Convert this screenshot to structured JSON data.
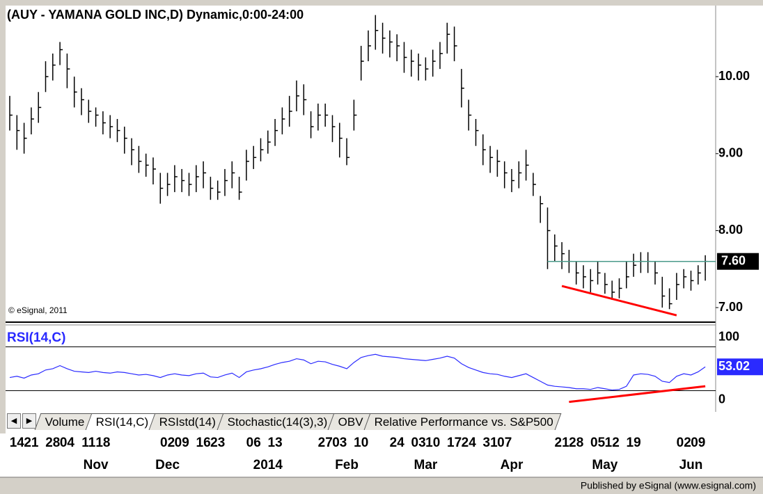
{
  "chart_data": {
    "type": "ohlc",
    "title": "(AUY - YAMANA GOLD INC,D) Dynamic,0:00-24:00",
    "copyright": "© eSignal, 2011",
    "footer": "Published by eSignal (www.esignal.com)",
    "tabs": [
      "Volume",
      "RSI(14,C)",
      "RSIstd(14)",
      "Stochastic(14(3),3)",
      "OBV",
      "Relative Performance vs. S&P500"
    ],
    "categories": [
      null,
      "14",
      null,
      "21",
      null,
      null,
      "28",
      null,
      "04",
      null,
      null,
      "11",
      null,
      "18",
      null,
      null,
      null,
      null,
      null,
      null,
      null,
      null,
      "02",
      null,
      "09",
      null,
      null,
      "16",
      null,
      "23",
      null,
      null,
      null,
      null,
      "06",
      null,
      null,
      "13",
      null,
      null,
      null,
      null,
      null,
      null,
      "27",
      null,
      "03",
      null,
      null,
      "10",
      null,
      null,
      null,
      null,
      "24",
      null,
      null,
      "03",
      null,
      "10",
      null,
      null,
      "17",
      null,
      "24",
      null,
      null,
      "31",
      null,
      "07",
      null,
      null,
      null,
      null,
      null,
      null,
      null,
      "21",
      null,
      "28",
      null,
      null,
      "05",
      null,
      "12",
      null,
      null,
      "19",
      null,
      null,
      null,
      null,
      null,
      null,
      "02",
      null,
      "09",
      null
    ],
    "months": [
      null,
      null,
      null,
      null,
      null,
      null,
      null,
      null,
      null,
      null,
      null,
      null,
      "Nov",
      null,
      null,
      null,
      null,
      null,
      null,
      null,
      null,
      null,
      "Dec",
      null,
      null,
      null,
      null,
      null,
      null,
      null,
      null,
      null,
      null,
      null,
      null,
      null,
      "2014",
      null,
      null,
      null,
      null,
      null,
      null,
      null,
      null,
      null,
      null,
      "Feb",
      null,
      null,
      null,
      null,
      null,
      null,
      null,
      null,
      null,
      null,
      "Mar",
      null,
      null,
      null,
      null,
      null,
      null,
      null,
      null,
      null,
      null,
      null,
      "Apr",
      null,
      null,
      null,
      null,
      null,
      null,
      null,
      null,
      null,
      null,
      null,
      null,
      "May",
      null,
      null,
      null,
      null,
      null,
      null,
      null,
      null,
      null,
      null,
      null,
      "Jun",
      null,
      null
    ],
    "high": [
      9.75,
      9.5,
      9.4,
      9.6,
      9.8,
      10.2,
      10.3,
      10.45,
      10.3,
      10.0,
      9.85,
      9.7,
      9.6,
      9.55,
      9.5,
      9.45,
      9.35,
      9.2,
      9.1,
      9.0,
      8.95,
      8.75,
      8.75,
      8.85,
      8.8,
      8.75,
      8.85,
      8.9,
      8.7,
      8.65,
      8.8,
      8.9,
      8.7,
      9.05,
      9.1,
      9.2,
      9.3,
      9.45,
      9.6,
      9.75,
      9.95,
      9.9,
      9.55,
      9.65,
      9.65,
      9.5,
      9.4,
      9.2,
      9.7,
      10.4,
      10.6,
      10.8,
      10.7,
      10.6,
      10.55,
      10.45,
      10.35,
      10.3,
      10.25,
      10.35,
      10.45,
      10.7,
      10.65,
      10.1,
      9.7,
      9.45,
      9.25,
      9.1,
      9.05,
      8.9,
      8.8,
      8.9,
      9.05,
      8.75,
      8.45,
      8.3,
      7.95,
      7.85,
      7.75,
      7.6,
      7.55,
      7.5,
      7.6,
      7.45,
      7.35,
      7.38,
      7.6,
      7.7,
      7.72,
      7.72,
      7.6,
      7.4,
      7.25,
      7.45,
      7.5,
      7.48,
      7.55,
      7.68
    ],
    "low": [
      9.3,
      9.05,
      9.0,
      9.25,
      9.4,
      9.8,
      9.95,
      10.15,
      9.85,
      9.6,
      9.5,
      9.4,
      9.35,
      9.25,
      9.2,
      9.15,
      9.0,
      8.85,
      8.75,
      8.7,
      8.6,
      8.35,
      8.45,
      8.5,
      8.5,
      8.45,
      8.5,
      8.55,
      8.4,
      8.4,
      8.45,
      8.55,
      8.4,
      8.65,
      8.8,
      8.9,
      9.0,
      9.1,
      9.25,
      9.35,
      9.55,
      9.5,
      9.2,
      9.3,
      9.35,
      9.15,
      8.95,
      8.85,
      9.3,
      9.95,
      10.2,
      10.35,
      10.3,
      10.25,
      10.2,
      10.05,
      10.0,
      9.95,
      9.95,
      10.0,
      10.1,
      10.3,
      10.2,
      9.6,
      9.3,
      9.1,
      8.85,
      8.75,
      8.7,
      8.55,
      8.5,
      8.55,
      8.65,
      8.45,
      8.1,
      7.5,
      7.6,
      7.5,
      7.45,
      7.3,
      7.25,
      7.2,
      7.3,
      7.18,
      7.1,
      7.12,
      7.25,
      7.4,
      7.45,
      7.45,
      7.3,
      7.0,
      6.98,
      7.1,
      7.25,
      7.22,
      7.3,
      7.35
    ],
    "close": [
      9.5,
      9.3,
      9.2,
      9.45,
      9.6,
      10.0,
      10.15,
      10.35,
      10.1,
      9.8,
      9.7,
      9.55,
      9.5,
      9.4,
      9.35,
      9.3,
      9.2,
      9.05,
      8.9,
      8.85,
      8.8,
      8.55,
      8.6,
      8.7,
      8.65,
      8.6,
      8.7,
      8.75,
      8.55,
      8.5,
      8.65,
      8.75,
      8.5,
      8.9,
      8.95,
      9.05,
      9.15,
      9.3,
      9.45,
      9.55,
      9.75,
      9.7,
      9.35,
      9.5,
      9.5,
      9.35,
      9.2,
      8.95,
      9.5,
      10.2,
      10.4,
      10.6,
      10.5,
      10.45,
      10.4,
      10.25,
      10.2,
      10.15,
      10.1,
      10.2,
      10.3,
      10.55,
      10.4,
      9.85,
      9.5,
      9.3,
      9.05,
      8.95,
      8.9,
      8.75,
      8.65,
      8.75,
      8.85,
      8.6,
      8.35,
      8.0,
      7.8,
      7.7,
      7.6,
      7.45,
      7.4,
      7.35,
      7.45,
      7.3,
      7.2,
      7.25,
      7.4,
      7.55,
      7.6,
      7.6,
      7.45,
      7.15,
      7.05,
      7.3,
      7.4,
      7.35,
      7.45,
      7.6
    ],
    "last_close_label": "7.60",
    "color": "#000000",
    "ylim": [
      6.82,
      10.86
    ],
    "yticks": [
      {
        "value": 10,
        "label": "10.00"
      },
      {
        "value": 9,
        "label": "9.00"
      },
      {
        "value": 8,
        "label": "8.00"
      },
      {
        "value": 7,
        "label": "7.00"
      }
    ],
    "resistance": {
      "value": 7.6,
      "from": 75,
      "color": "#4a9a8a"
    },
    "trendline": {
      "x": [
        77,
        93
      ],
      "y": [
        7.28,
        6.9
      ],
      "color": "#ff0000"
    },
    "rsi": {
      "name": "RSI(14,C)",
      "color": "#2a2aff",
      "values": [
        36,
        38,
        35,
        40,
        42,
        48,
        50,
        55,
        50,
        46,
        45,
        44,
        46,
        44,
        43,
        45,
        44,
        42,
        40,
        41,
        39,
        36,
        40,
        42,
        40,
        39,
        42,
        43,
        37,
        36,
        40,
        43,
        36,
        45,
        48,
        50,
        53,
        57,
        60,
        62,
        66,
        64,
        58,
        62,
        61,
        57,
        54,
        50,
        60,
        68,
        71,
        73,
        70,
        69,
        68,
        66,
        65,
        64,
        63,
        65,
        67,
        70,
        67,
        58,
        52,
        48,
        44,
        42,
        41,
        38,
        36,
        39,
        42,
        36,
        30,
        24,
        22,
        21,
        20,
        18,
        18,
        17,
        20,
        18,
        16,
        17,
        22,
        40,
        42,
        41,
        38,
        30,
        28,
        38,
        42,
        40,
        45,
        53.02
      ],
      "ylim": [
        -16.7,
        121.1
      ],
      "yticks": [
        100,
        0
      ],
      "levels": [
        85,
        15
      ],
      "trendline": {
        "x": [
          78,
          97
        ],
        "y": [
          -3,
          22
        ],
        "color": "#ff0000"
      }
    }
  }
}
